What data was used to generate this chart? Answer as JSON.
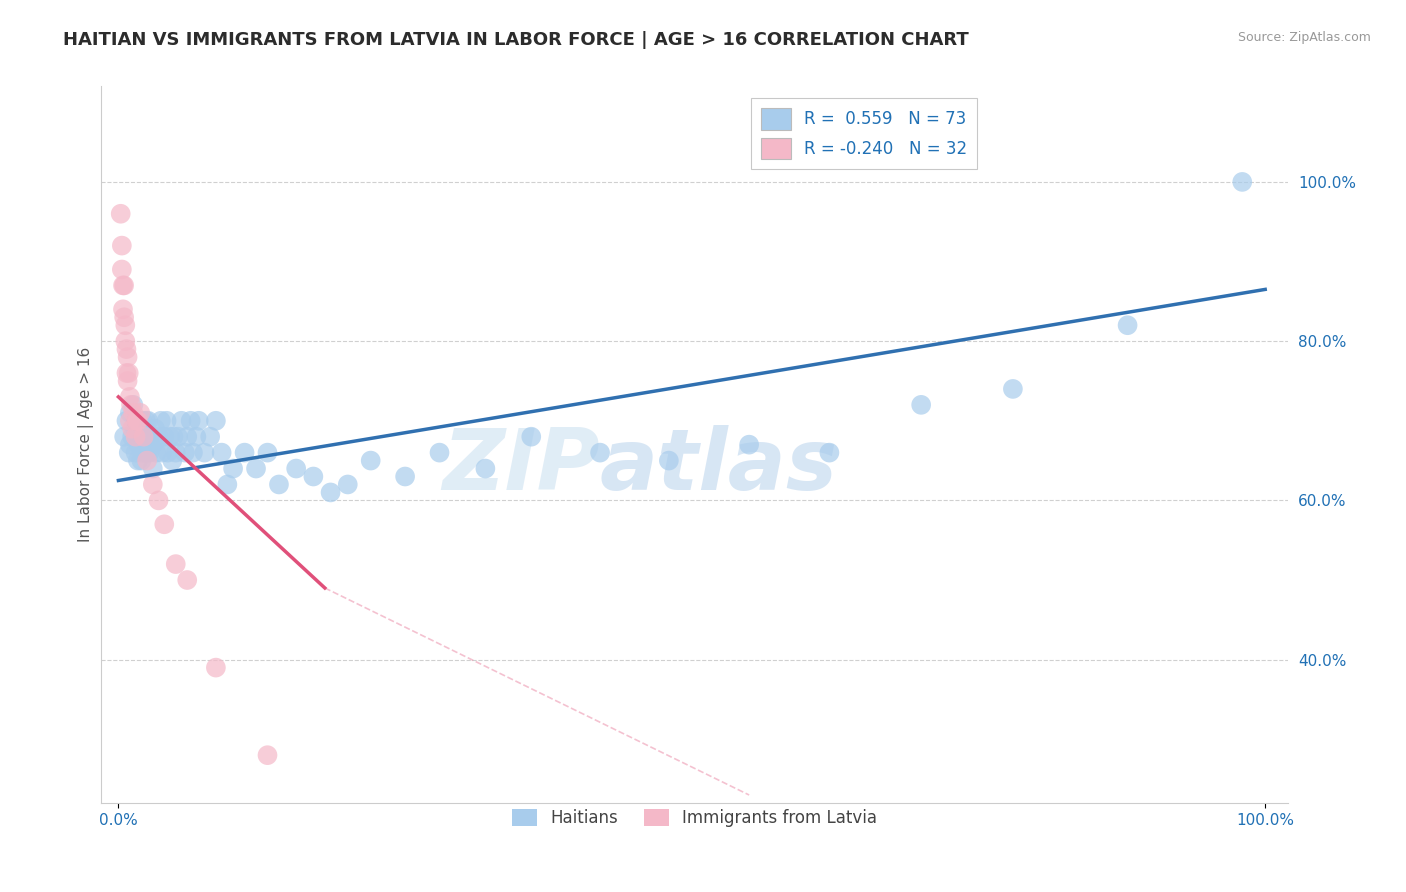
{
  "title": "HAITIAN VS IMMIGRANTS FROM LATVIA IN LABOR FORCE | AGE > 16 CORRELATION CHART",
  "source_text": "Source: ZipAtlas.com",
  "ylabel": "In Labor Force | Age > 16",
  "watermark_zip": "ZIP",
  "watermark_atlas": "atlas",
  "blue_R": 0.559,
  "blue_N": 73,
  "pink_R": -0.24,
  "pink_N": 32,
  "blue_color": "#a8ccec",
  "pink_color": "#f4b8c8",
  "blue_line_color": "#3070b0",
  "pink_line_color": "#e0507a",
  "blue_scatter_x": [
    0.005,
    0.007,
    0.009,
    0.01,
    0.01,
    0.012,
    0.013,
    0.015,
    0.015,
    0.016,
    0.017,
    0.018,
    0.019,
    0.02,
    0.02,
    0.021,
    0.022,
    0.023,
    0.024,
    0.025,
    0.025,
    0.026,
    0.027,
    0.028,
    0.03,
    0.03,
    0.032,
    0.033,
    0.035,
    0.037,
    0.038,
    0.04,
    0.042,
    0.043,
    0.045,
    0.047,
    0.048,
    0.05,
    0.052,
    0.055,
    0.058,
    0.06,
    0.063,
    0.065,
    0.068,
    0.07,
    0.075,
    0.08,
    0.085,
    0.09,
    0.095,
    0.1,
    0.11,
    0.12,
    0.13,
    0.14,
    0.155,
    0.17,
    0.185,
    0.2,
    0.22,
    0.25,
    0.28,
    0.32,
    0.36,
    0.42,
    0.48,
    0.55,
    0.62,
    0.7,
    0.78,
    0.88,
    0.98
  ],
  "blue_scatter_y": [
    0.68,
    0.7,
    0.66,
    0.67,
    0.71,
    0.68,
    0.72,
    0.66,
    0.69,
    0.7,
    0.65,
    0.67,
    0.69,
    0.65,
    0.68,
    0.7,
    0.66,
    0.68,
    0.7,
    0.66,
    0.68,
    0.7,
    0.66,
    0.67,
    0.64,
    0.67,
    0.69,
    0.66,
    0.68,
    0.7,
    0.66,
    0.68,
    0.7,
    0.66,
    0.68,
    0.65,
    0.68,
    0.66,
    0.68,
    0.7,
    0.66,
    0.68,
    0.7,
    0.66,
    0.68,
    0.7,
    0.66,
    0.68,
    0.7,
    0.66,
    0.62,
    0.64,
    0.66,
    0.64,
    0.66,
    0.62,
    0.64,
    0.63,
    0.61,
    0.62,
    0.65,
    0.63,
    0.66,
    0.64,
    0.68,
    0.66,
    0.65,
    0.67,
    0.66,
    0.72,
    0.74,
    0.82,
    1.0
  ],
  "pink_scatter_x": [
    0.002,
    0.003,
    0.003,
    0.004,
    0.004,
    0.005,
    0.005,
    0.006,
    0.006,
    0.007,
    0.007,
    0.008,
    0.008,
    0.009,
    0.01,
    0.01,
    0.011,
    0.012,
    0.013,
    0.015,
    0.016,
    0.017,
    0.019,
    0.022,
    0.025,
    0.03,
    0.035,
    0.04,
    0.05,
    0.06,
    0.085,
    0.13
  ],
  "pink_scatter_y": [
    0.96,
    0.92,
    0.89,
    0.87,
    0.84,
    0.87,
    0.83,
    0.8,
    0.82,
    0.79,
    0.76,
    0.78,
    0.75,
    0.76,
    0.73,
    0.7,
    0.72,
    0.69,
    0.71,
    0.68,
    0.7,
    0.7,
    0.71,
    0.68,
    0.65,
    0.62,
    0.6,
    0.57,
    0.52,
    0.5,
    0.39,
    0.28
  ],
  "legend_label_blue": "Haitians",
  "legend_label_pink": "Immigrants from Latvia",
  "title_color": "#2c2c2c",
  "axis_label_color": "#555555",
  "tick_color": "#2171b5",
  "grid_color": "#d0d0d0",
  "background_color": "#ffffff",
  "title_fontsize": 13,
  "label_fontsize": 11,
  "tick_fontsize": 11,
  "xlim": [
    -0.015,
    1.02
  ],
  "ylim": [
    0.22,
    1.12
  ],
  "yticks": [
    0.4,
    0.6,
    0.8,
    1.0
  ],
  "ytick_labels": [
    "40.0%",
    "60.0%",
    "80.0%",
    "100.0%"
  ],
  "xtick_labels": [
    "0.0%",
    "100.0%"
  ]
}
